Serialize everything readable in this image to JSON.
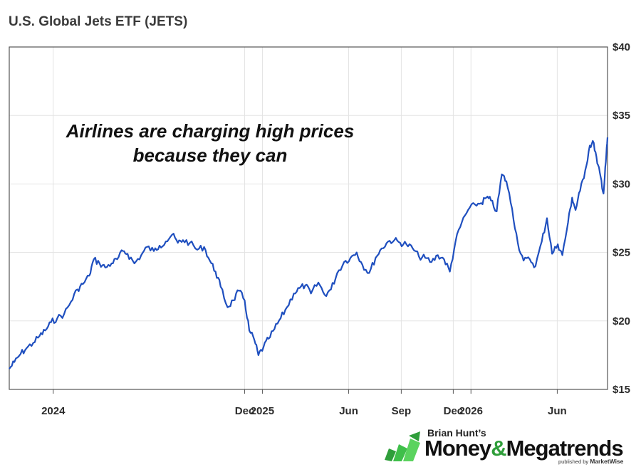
{
  "chart_data": {
    "type": "line",
    "title": "U.S. Global Jets ETF (JETS)",
    "annotation": [
      "Airlines are charging high prices",
      "because they can"
    ],
    "ylim": [
      15,
      40
    ],
    "yticks": [
      15,
      20,
      25,
      30,
      35,
      40
    ],
    "ytick_labels": [
      "$15",
      "$20",
      "$25",
      "$30",
      "$35",
      "$40"
    ],
    "xlim": [
      "2023-10-16",
      "2026-08-28"
    ],
    "xticks": [
      {
        "date": "2024-01-01",
        "label": "2024"
      },
      {
        "date": "2024-12-01",
        "label": "Dec"
      },
      {
        "date": "2025-01-01",
        "label": "2025"
      },
      {
        "date": "2025-06-01",
        "label": "Jun"
      },
      {
        "date": "2025-09-01",
        "label": "Sep"
      },
      {
        "date": "2025-12-01",
        "label": "Dec"
      },
      {
        "date": "2026-01-01",
        "label": "2026"
      },
      {
        "date": "2026-06-01",
        "label": "Jun"
      }
    ],
    "grid": true,
    "line_color": "#1f4fbf",
    "series": [
      {
        "values": [
          [
            "2023-10-16",
            16.5
          ],
          [
            "2023-10-25",
            17.0
          ],
          [
            "2023-11-05",
            17.6
          ],
          [
            "2023-11-15",
            18.0
          ],
          [
            "2023-11-27",
            18.4
          ],
          [
            "2023-12-08",
            18.9
          ],
          [
            "2023-12-18",
            19.3
          ],
          [
            "2023-12-28",
            19.9
          ],
          [
            "2024-01-08",
            20.2
          ],
          [
            "2024-01-20",
            20.5
          ],
          [
            "2024-02-01",
            21.4
          ],
          [
            "2024-02-12",
            22.3
          ],
          [
            "2024-02-22",
            22.7
          ],
          [
            "2024-03-04",
            23.3
          ],
          [
            "2024-03-12",
            24.5
          ],
          [
            "2024-03-22",
            24.2
          ],
          [
            "2024-04-01",
            23.9
          ],
          [
            "2024-04-12",
            24.2
          ],
          [
            "2024-04-22",
            24.5
          ],
          [
            "2024-05-02",
            25.1
          ],
          [
            "2024-05-10",
            24.9
          ],
          [
            "2024-05-22",
            24.2
          ],
          [
            "2024-06-03",
            24.8
          ],
          [
            "2024-06-13",
            25.4
          ],
          [
            "2024-06-25",
            25.1
          ],
          [
            "2024-07-05",
            25.5
          ],
          [
            "2024-07-16",
            25.8
          ],
          [
            "2024-07-27",
            26.3
          ],
          [
            "2024-08-06",
            25.7
          ],
          [
            "2024-08-15",
            25.9
          ],
          [
            "2024-08-27",
            25.7
          ],
          [
            "2024-09-09",
            25.2
          ],
          [
            "2024-09-21",
            25.4
          ],
          [
            "2024-10-01",
            24.4
          ],
          [
            "2024-10-11",
            23.6
          ],
          [
            "2024-10-20",
            22.5
          ],
          [
            "2024-11-01",
            21.0
          ],
          [
            "2024-11-11",
            21.5
          ],
          [
            "2024-11-21",
            22.2
          ],
          [
            "2024-12-01",
            21.5
          ],
          [
            "2024-12-09",
            19.3
          ],
          [
            "2024-12-18",
            18.6
          ],
          [
            "2024-12-25",
            17.5
          ],
          [
            "2025-01-03",
            18.1
          ],
          [
            "2025-01-12",
            18.7
          ],
          [
            "2025-01-22",
            19.4
          ],
          [
            "2025-02-02",
            20.2
          ],
          [
            "2025-02-13",
            21.0
          ],
          [
            "2025-02-25",
            22.0
          ],
          [
            "2025-03-07",
            22.4
          ],
          [
            "2025-03-17",
            22.6
          ],
          [
            "2025-03-27",
            22.0
          ],
          [
            "2025-04-09",
            22.8
          ],
          [
            "2025-04-20",
            21.9
          ],
          [
            "2025-05-01",
            22.3
          ],
          [
            "2025-05-12",
            23.5
          ],
          [
            "2025-05-24",
            24.3
          ],
          [
            "2025-06-04",
            24.6
          ],
          [
            "2025-06-15",
            25.0
          ],
          [
            "2025-06-25",
            24.1
          ],
          [
            "2025-07-07",
            23.5
          ],
          [
            "2025-07-18",
            24.6
          ],
          [
            "2025-07-29",
            25.3
          ],
          [
            "2025-08-09",
            25.8
          ],
          [
            "2025-08-20",
            25.9
          ],
          [
            "2025-08-30",
            25.7
          ],
          [
            "2025-09-10",
            25.6
          ],
          [
            "2025-09-21",
            25.3
          ],
          [
            "2025-10-02",
            24.7
          ],
          [
            "2025-10-13",
            24.6
          ],
          [
            "2025-10-24",
            24.3
          ],
          [
            "2025-11-04",
            24.8
          ],
          [
            "2025-11-15",
            24.5
          ],
          [
            "2025-11-25",
            23.6
          ],
          [
            "2025-12-05",
            25.8
          ],
          [
            "2025-12-16",
            27.2
          ],
          [
            "2025-12-27",
            28.1
          ],
          [
            "2026-01-08",
            28.5
          ],
          [
            "2026-01-19",
            28.6
          ],
          [
            "2026-01-28",
            29.0
          ],
          [
            "2026-02-05",
            28.8
          ],
          [
            "2026-02-15",
            28.0
          ],
          [
            "2026-02-24",
            30.7
          ],
          [
            "2026-03-04",
            30.2
          ],
          [
            "2026-03-14",
            28.2
          ],
          [
            "2026-03-24",
            25.7
          ],
          [
            "2026-04-03",
            24.4
          ],
          [
            "2026-04-14",
            24.5
          ],
          [
            "2026-04-24",
            24.0
          ],
          [
            "2026-05-05",
            25.8
          ],
          [
            "2026-05-14",
            27.5
          ],
          [
            "2026-05-23",
            24.9
          ],
          [
            "2026-06-02",
            25.6
          ],
          [
            "2026-06-10",
            24.8
          ],
          [
            "2026-06-20",
            27.2
          ],
          [
            "2026-06-27",
            29.0
          ],
          [
            "2026-07-03",
            28.1
          ],
          [
            "2026-07-11",
            29.5
          ],
          [
            "2026-07-20",
            31.0
          ],
          [
            "2026-07-28",
            32.8
          ],
          [
            "2026-08-04",
            33.0
          ],
          [
            "2026-08-10",
            31.5
          ],
          [
            "2026-08-16",
            30.5
          ],
          [
            "2026-08-21",
            29.3
          ],
          [
            "2026-08-25",
            31.6
          ],
          [
            "2026-08-28",
            33.4
          ]
        ]
      }
    ]
  },
  "branding": {
    "pre": "Brian Hunt’s",
    "main_left": "Money",
    "amp": "&",
    "main_right": "Megatrends",
    "pub_text": "published by",
    "pub_brand": "MarketWise"
  }
}
